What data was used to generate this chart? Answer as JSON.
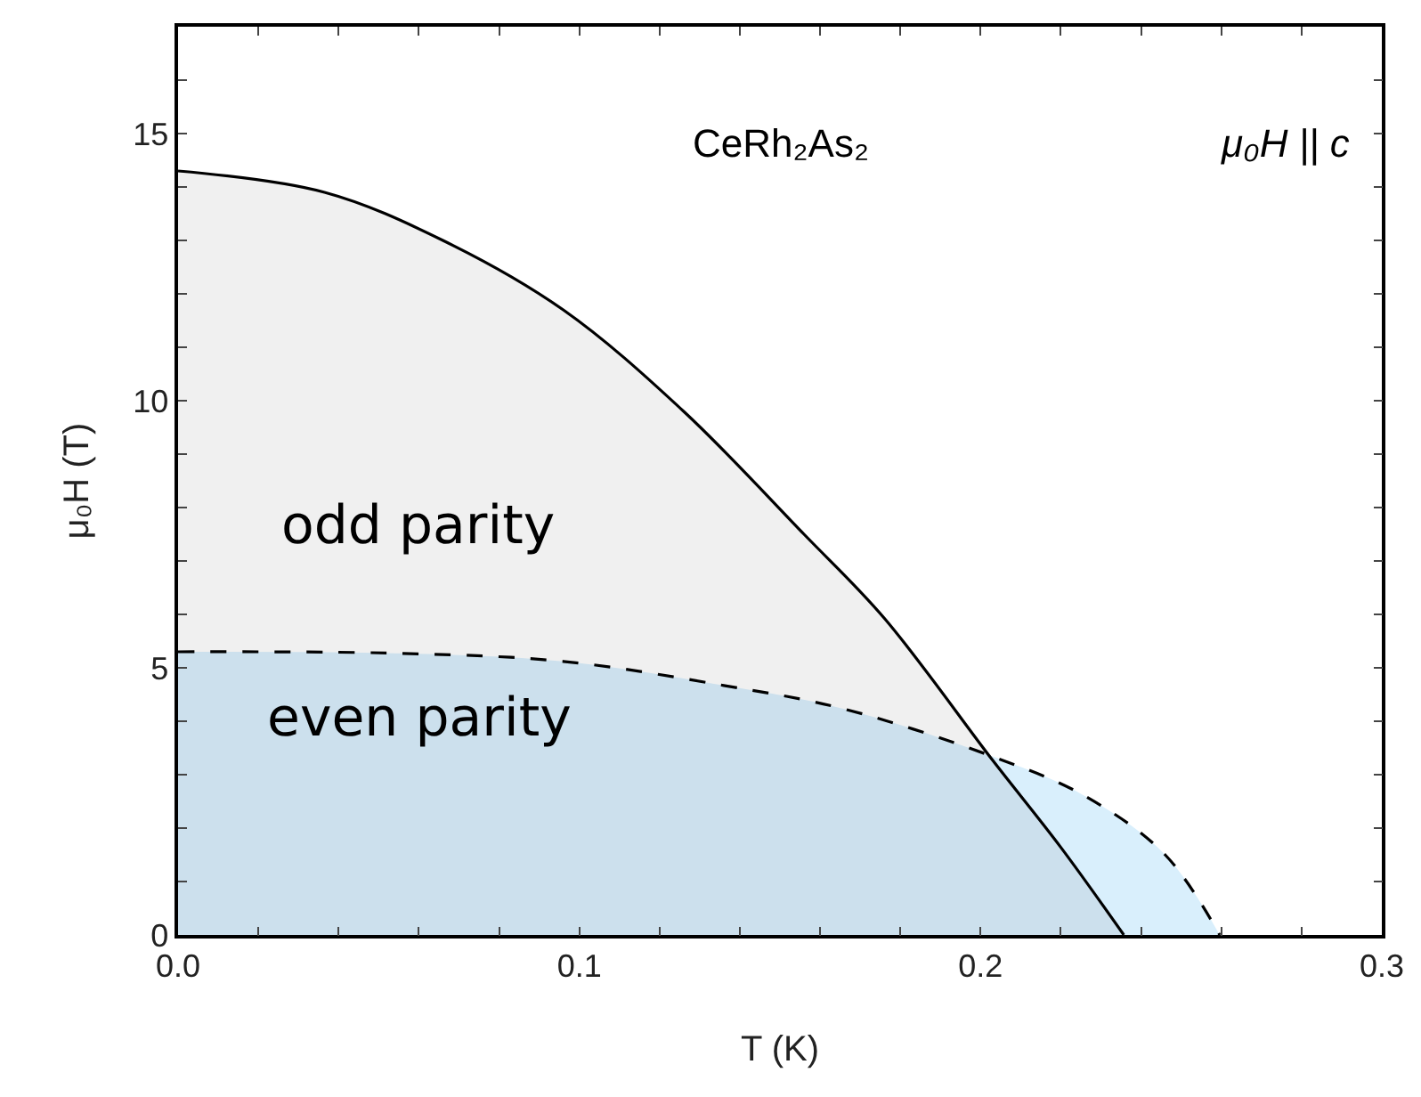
{
  "chart_data": {
    "type": "area",
    "xlabel": "T (K)",
    "ylabel": "μ₀H (T)",
    "xlim": [
      0,
      0.3
    ],
    "ylim": [
      0,
      17
    ],
    "xticks": [
      {
        "value": 0,
        "label": "0.0"
      },
      {
        "value": 0.02,
        "label": null
      },
      {
        "value": 0.04,
        "label": null
      },
      {
        "value": 0.06,
        "label": null
      },
      {
        "value": 0.08,
        "label": null
      },
      0.1,
      {
        "value": 0.12,
        "label": null
      },
      {
        "value": 0.14,
        "label": null
      },
      {
        "value": 0.16,
        "label": null
      },
      {
        "value": 0.18,
        "label": null
      },
      0.2,
      {
        "value": 0.22,
        "label": null
      },
      {
        "value": 0.24,
        "label": null
      },
      {
        "value": 0.26,
        "label": null
      },
      {
        "value": 0.28,
        "label": null
      },
      0.3
    ],
    "yticks": [
      0,
      {
        "value": 1,
        "label": null
      },
      {
        "value": 2,
        "label": null
      },
      {
        "value": 3,
        "label": null
      },
      {
        "value": 4,
        "label": null
      },
      5,
      {
        "value": 6,
        "label": null
      },
      {
        "value": 7,
        "label": null
      },
      {
        "value": 8,
        "label": null
      },
      {
        "value": 9,
        "label": null
      },
      10,
      {
        "value": 11,
        "label": null
      },
      {
        "value": 12,
        "label": null
      },
      {
        "value": 13,
        "label": null
      },
      {
        "value": 14,
        "label": null
      },
      15,
      {
        "value": 16,
        "label": null
      }
    ],
    "grid": false,
    "marker": "none",
    "series": [
      {
        "color": "#f0f0f0",
        "line_style": "solid",
        "x": [
          0,
          0.0365,
          0.066,
          0.096,
          0.126,
          0.156,
          0.176,
          0.203,
          0.22,
          0.2357
        ],
        "values": [
          14.3,
          13.9,
          13.0,
          11.7,
          9.8,
          7.5,
          5.93,
          3.27,
          1.64,
          0
        ]
      },
      {
        "color": "#d9effc",
        "line_style": "dashed",
        "x": [
          0,
          0.056,
          0.096,
          0.136,
          0.166,
          0.203,
          0.226,
          0.246,
          0.2596
        ],
        "values": [
          5.3,
          5.27,
          5.12,
          4.67,
          4.23,
          3.34,
          2.6,
          1.5,
          0
        ]
      }
    ],
    "annotations": [
      "odd parity",
      "even parity",
      "CeRh₂As₂",
      "μ₀H || c"
    ]
  }
}
